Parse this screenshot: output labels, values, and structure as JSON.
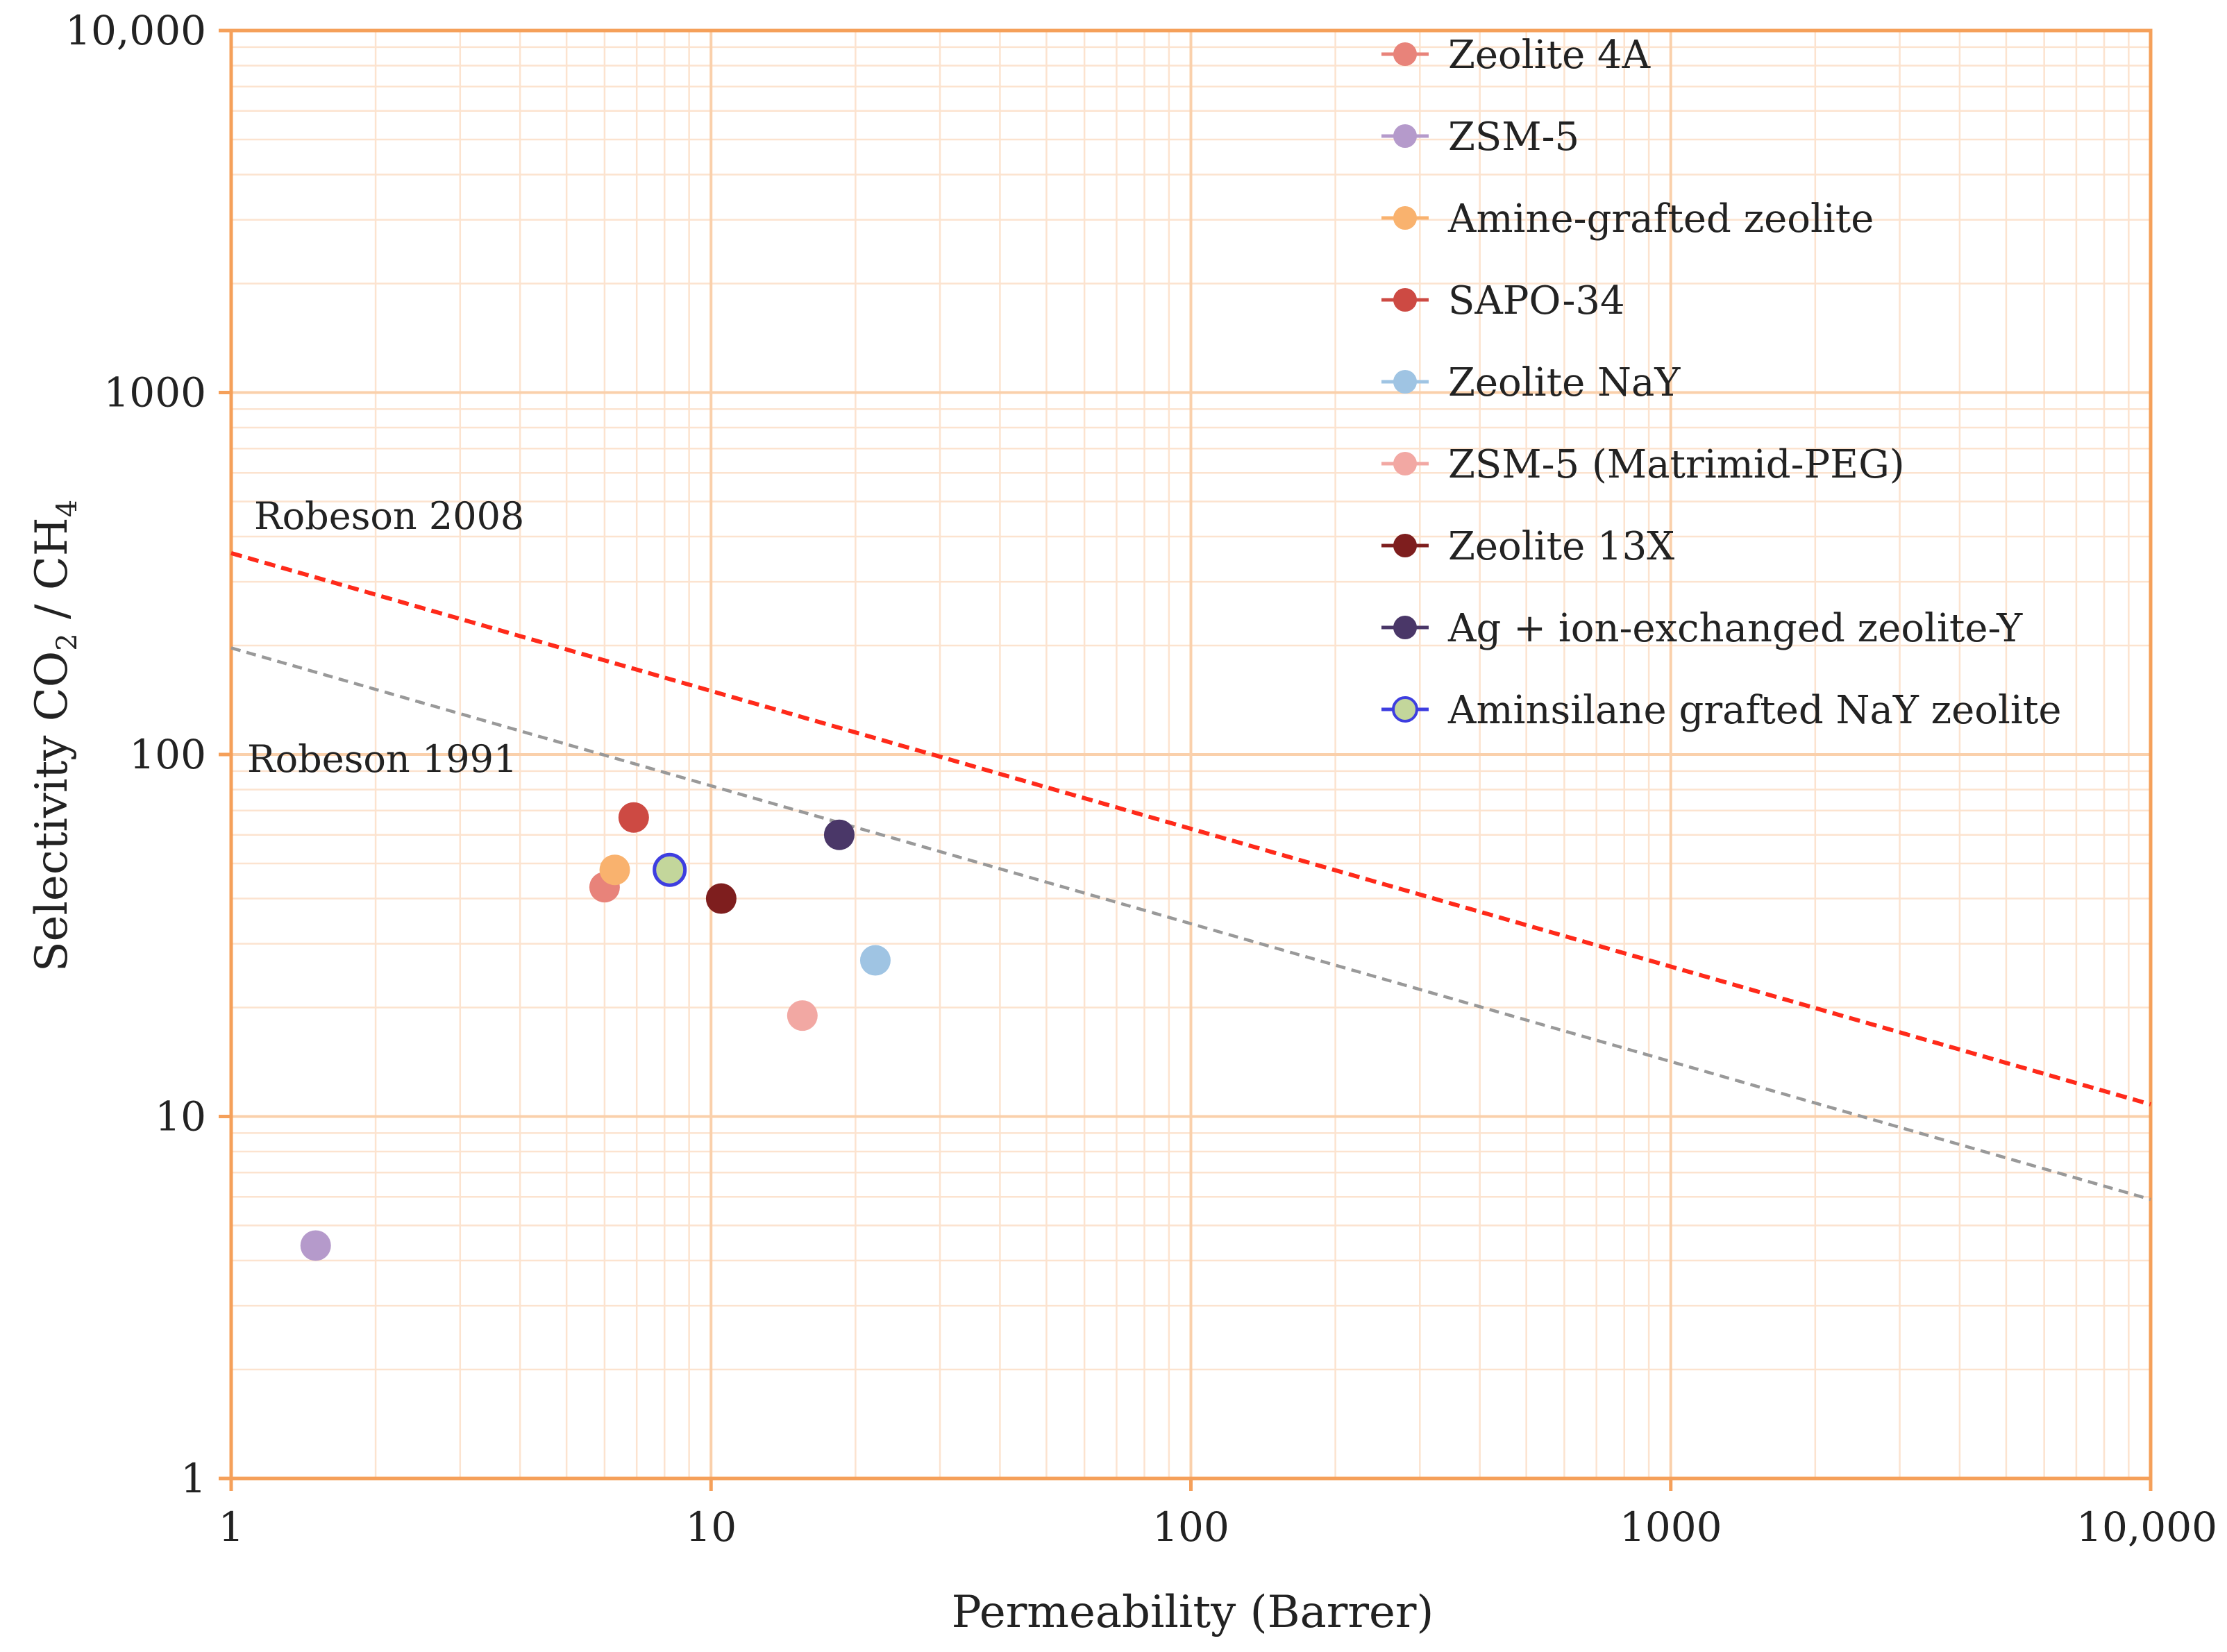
{
  "chart_data": {
    "type": "scatter",
    "xlabel": "Permeability (Barrer)",
    "ylabel_parts": {
      "prefix": "Selectivity  CO",
      "sub1": "2",
      "mid": " / CH",
      "sub2": "4"
    },
    "x_scale": "log",
    "y_scale": "log",
    "xlim": [
      1,
      10000
    ],
    "ylim": [
      1,
      10000
    ],
    "x_ticks": [
      {
        "value": 1,
        "label": "1"
      },
      {
        "value": 10,
        "label": "10"
      },
      {
        "value": 100,
        "label": "100"
      },
      {
        "value": 1000,
        "label": "1000"
      },
      {
        "value": 10000,
        "label": "10,000"
      }
    ],
    "y_ticks": [
      {
        "value": 1,
        "label": "1"
      },
      {
        "value": 10,
        "label": "10"
      },
      {
        "value": 100,
        "label": "100"
      },
      {
        "value": 1000,
        "label": "1000"
      },
      {
        "value": 10000,
        "label": "10,000"
      }
    ],
    "grid": true,
    "legend_position": "top-right",
    "series": [
      {
        "name": "Zeolite 4A",
        "color": "#e8837a",
        "x": 6.0,
        "y": 43
      },
      {
        "name": "ZSM-5",
        "color": "#b59acb",
        "x": 1.5,
        "y": 4.4
      },
      {
        "name": "Amine-grafted zeolite",
        "color": "#f9b26e",
        "x": 6.3,
        "y": 48
      },
      {
        "name": "SAPO-34",
        "color": "#cd4a43",
        "x": 6.9,
        "y": 67
      },
      {
        "name": "Zeolite NaY",
        "color": "#9fc4e3",
        "x": 22,
        "y": 27
      },
      {
        "name": "ZSM-5 (Matrimid-PEG)",
        "color": "#f2a8a3",
        "x": 15.5,
        "y": 19
      },
      {
        "name": "Zeolite 13X",
        "color": "#7e1e1e",
        "x": 10.5,
        "y": 40
      },
      {
        "name": "Ag + ion-exchanged zeolite-Y",
        "color": "#4a3768",
        "x": 18.5,
        "y": 60
      },
      {
        "name": "Aminsilane grafted NaY zeolite",
        "color": "#c3d69b",
        "edge_color": "#3e3ee0",
        "x": 8.2,
        "y": 48
      }
    ],
    "lines": [
      {
        "name": "Robeson 2008",
        "label": "Robeson 2008",
        "color": "#ff2a1a",
        "dash": "dashed",
        "points": [
          [
            1,
            360
          ],
          [
            10000,
            10.8
          ]
        ]
      },
      {
        "name": "Robeson 1991",
        "label": "Robeson 1991",
        "color": "#999999",
        "dash": "dashed",
        "points": [
          [
            1,
            197
          ],
          [
            10000,
            5.9
          ]
        ]
      }
    ],
    "colors": {
      "grid_major": "#fad0ab",
      "grid_minor": "#fce3cf",
      "axis_frame": "#f5a05a"
    }
  }
}
